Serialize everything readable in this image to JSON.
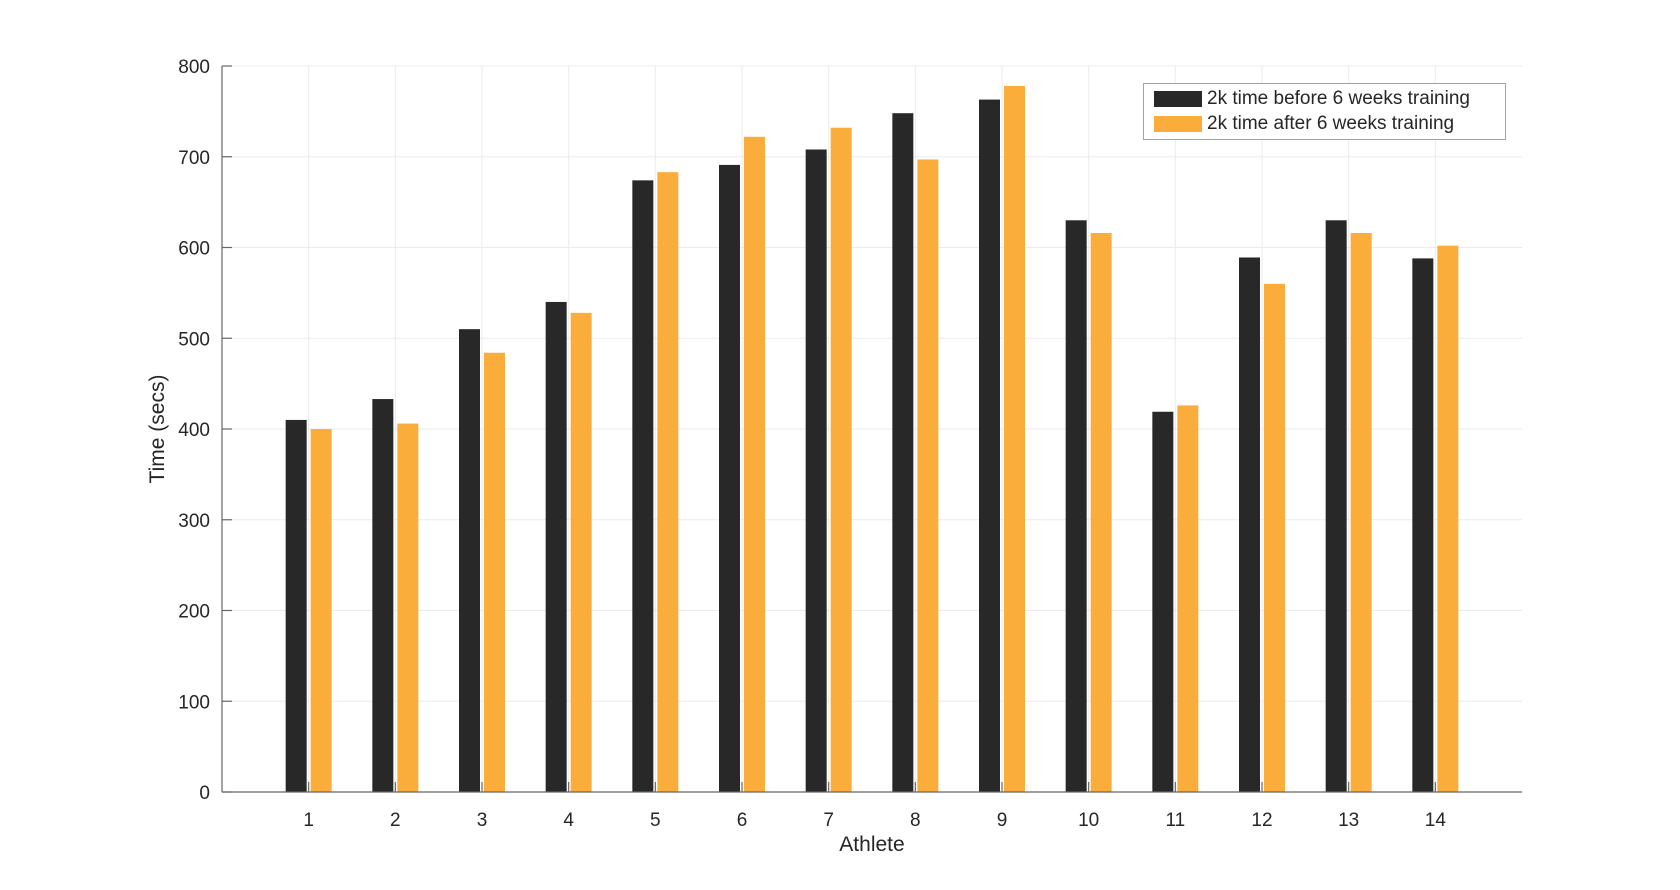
{
  "figure": {
    "background_color": "#ffffff"
  },
  "chart_data": {
    "type": "bar",
    "title": "",
    "xlabel": "Athlete",
    "ylabel": "Time (secs)",
    "categories": [
      "1",
      "2",
      "3",
      "4",
      "5",
      "6",
      "7",
      "8",
      "9",
      "10",
      "11",
      "12",
      "13",
      "14"
    ],
    "series": [
      {
        "name": "2k time before 6 weeks training",
        "color": "#282828",
        "values": [
          410,
          433,
          510,
          540,
          674,
          691,
          708,
          748,
          763,
          630,
          419,
          589,
          630,
          588
        ]
      },
      {
        "name": "2k time after 6 weeks training",
        "color": "#fbad3c",
        "values": [
          400,
          406,
          484,
          528,
          683,
          722,
          732,
          697,
          778,
          616,
          426,
          560,
          616,
          602
        ]
      }
    ],
    "ylim": [
      0,
      800
    ],
    "ytick_step": 100,
    "yticks": [
      0,
      100,
      200,
      300,
      400,
      500,
      600,
      700,
      800
    ],
    "grid": "both",
    "legend_position": "top-right"
  },
  "colors": {
    "axis": "#666666",
    "grid_line": "#ebebeb",
    "tick_label": "#262626",
    "legend_border": "#a3a3a3"
  }
}
